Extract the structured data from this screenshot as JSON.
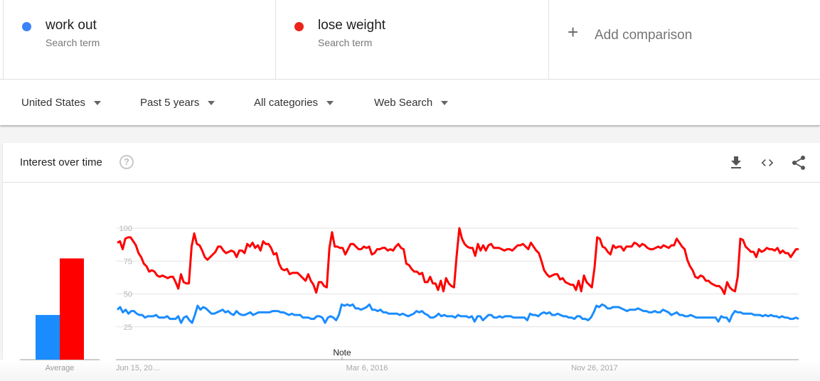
{
  "search_terms": [
    {
      "name": "work out",
      "subtitle": "Search term",
      "color": "#4285f4"
    },
    {
      "name": "lose weight",
      "subtitle": "Search term",
      "color": "#ea2418"
    }
  ],
  "add_comparison": {
    "icon": "plus-icon",
    "label": "Add comparison"
  },
  "filters": [
    {
      "label": "United States"
    },
    {
      "label": "Past 5 years"
    },
    {
      "label": "All categories"
    },
    {
      "label": "Web Search"
    }
  ],
  "card": {
    "title": "Interest over time",
    "help_icon": "?",
    "actions": [
      "download-icon",
      "embed-code-icon",
      "share-icon"
    ]
  },
  "average_label": "Average",
  "note_label": "Note",
  "chart_data": {
    "type": "line",
    "title": "Interest over time",
    "xlabel": "",
    "ylabel": "",
    "ylim": [
      0,
      100
    ],
    "yticks": [
      25,
      50,
      75,
      100
    ],
    "xtick_labels": [
      "Jun 15, 20…",
      "Mar 6, 2016",
      "Nov 26, 2017"
    ],
    "grid": true,
    "legend": [
      "work out",
      "lose weight"
    ],
    "average": {
      "type": "bar",
      "categories": [
        "Average"
      ],
      "series": [
        {
          "name": "work out",
          "value": 34,
          "color": "#1a8cff"
        },
        {
          "name": "lose weight",
          "value": 77,
          "color": "#ff0000"
        }
      ]
    },
    "annotations": [
      {
        "label": "Note",
        "x_fraction": 0.329
      }
    ],
    "series": [
      {
        "name": "work out",
        "color": "#1a8cff",
        "values": [
          38,
          40,
          36,
          38,
          35,
          37,
          37,
          35,
          34,
          34,
          32,
          33,
          33,
          33,
          34,
          32,
          32,
          32,
          33,
          31,
          31,
          31,
          33,
          28,
          32,
          33,
          30,
          28,
          34,
          41,
          38,
          40,
          39,
          37,
          35,
          35,
          36,
          37,
          38,
          36,
          37,
          35,
          34,
          37,
          35,
          34,
          34,
          35,
          36,
          34,
          35,
          36,
          36,
          36,
          36,
          36,
          37,
          37,
          37,
          36,
          36,
          35,
          34,
          35,
          34,
          34,
          34,
          32,
          32,
          32,
          31,
          31,
          33,
          33,
          32,
          28,
          32,
          33,
          32,
          30,
          34,
          42,
          41,
          42,
          41,
          42,
          39,
          39,
          38,
          39,
          40,
          42,
          38,
          38,
          37,
          38,
          36,
          36,
          35,
          35,
          35,
          35,
          34,
          35,
          34,
          33,
          34,
          35,
          37,
          36,
          37,
          35,
          34,
          32,
          32,
          33,
          35,
          33,
          34,
          33,
          33,
          33,
          32,
          34,
          33,
          33,
          33,
          32,
          33,
          29,
          33,
          33,
          30,
          32,
          34,
          34,
          32,
          32,
          33,
          32,
          33,
          33,
          33,
          32,
          32,
          32,
          32,
          32,
          30,
          35,
          34,
          34,
          33,
          35,
          36,
          35,
          36,
          34,
          34,
          35,
          34,
          33,
          33,
          32,
          32,
          31,
          33,
          33,
          31,
          31,
          30,
          32,
          36,
          41,
          40,
          42,
          41,
          39,
          39,
          40,
          40,
          40,
          39,
          38,
          37,
          38,
          38,
          38,
          39,
          38,
          37,
          37,
          36,
          36,
          37,
          36,
          36,
          38,
          37,
          36,
          34,
          35,
          36,
          34,
          34,
          33,
          33,
          34,
          33,
          32,
          32,
          32,
          32,
          32,
          32,
          32,
          32,
          29,
          33,
          32,
          32,
          29,
          34,
          37,
          36,
          36,
          35,
          35,
          35,
          35,
          34,
          34,
          34,
          33,
          34,
          33,
          34,
          33,
          33,
          32,
          33,
          32,
          32,
          31,
          31,
          32,
          31
        ]
      },
      {
        "name": "lose weight",
        "color": "#ff0000",
        "values": [
          89,
          90,
          84,
          92,
          93,
          93,
          90,
          87,
          81,
          78,
          73,
          71,
          67,
          68,
          67,
          64,
          63,
          64,
          63,
          62,
          63,
          63,
          59,
          54,
          65,
          59,
          58,
          58,
          86,
          96,
          88,
          87,
          83,
          78,
          76,
          78,
          80,
          82,
          86,
          86,
          83,
          81,
          82,
          83,
          82,
          78,
          83,
          83,
          81,
          88,
          86,
          89,
          85,
          87,
          83,
          90,
          88,
          88,
          85,
          80,
          81,
          73,
          69,
          68,
          69,
          65,
          66,
          66,
          66,
          64,
          62,
          60,
          65,
          60,
          57,
          51,
          59,
          59,
          56,
          55,
          85,
          97,
          86,
          86,
          85,
          85,
          80,
          84,
          88,
          88,
          86,
          84,
          84,
          86,
          85,
          86,
          80,
          81,
          84,
          84,
          85,
          85,
          83,
          84,
          83,
          86,
          88,
          85,
          84,
          73,
          72,
          69,
          67,
          67,
          65,
          66,
          59,
          59,
          63,
          58,
          58,
          53,
          60,
          52,
          62,
          58,
          56,
          55,
          79,
          100,
          92,
          88,
          86,
          85,
          85,
          79,
          88,
          83,
          87,
          83,
          87,
          88,
          85,
          85,
          85,
          84,
          83,
          84,
          84,
          83,
          85,
          87,
          87,
          88,
          86,
          84,
          89,
          86,
          83,
          81,
          75,
          68,
          65,
          63,
          64,
          65,
          65,
          61,
          62,
          59,
          58,
          57,
          57,
          53,
          60,
          52,
          64,
          59,
          57,
          55,
          70,
          93,
          92,
          86,
          85,
          82,
          80,
          87,
          85,
          86,
          86,
          83,
          86,
          86,
          86,
          89,
          88,
          86,
          88,
          87,
          85,
          84,
          84,
          85,
          86,
          85,
          87,
          86,
          85,
          87,
          87,
          92,
          89,
          86,
          84,
          76,
          71,
          68,
          63,
          62,
          64,
          63,
          60,
          60,
          58,
          57,
          56,
          56,
          54,
          50,
          59,
          55,
          53,
          52,
          63,
          92,
          91,
          86,
          84,
          82,
          82,
          78,
          84,
          82,
          83,
          85,
          84,
          84,
          83,
          85,
          81,
          83,
          81,
          81,
          78,
          81,
          84,
          84
        ]
      }
    ]
  }
}
